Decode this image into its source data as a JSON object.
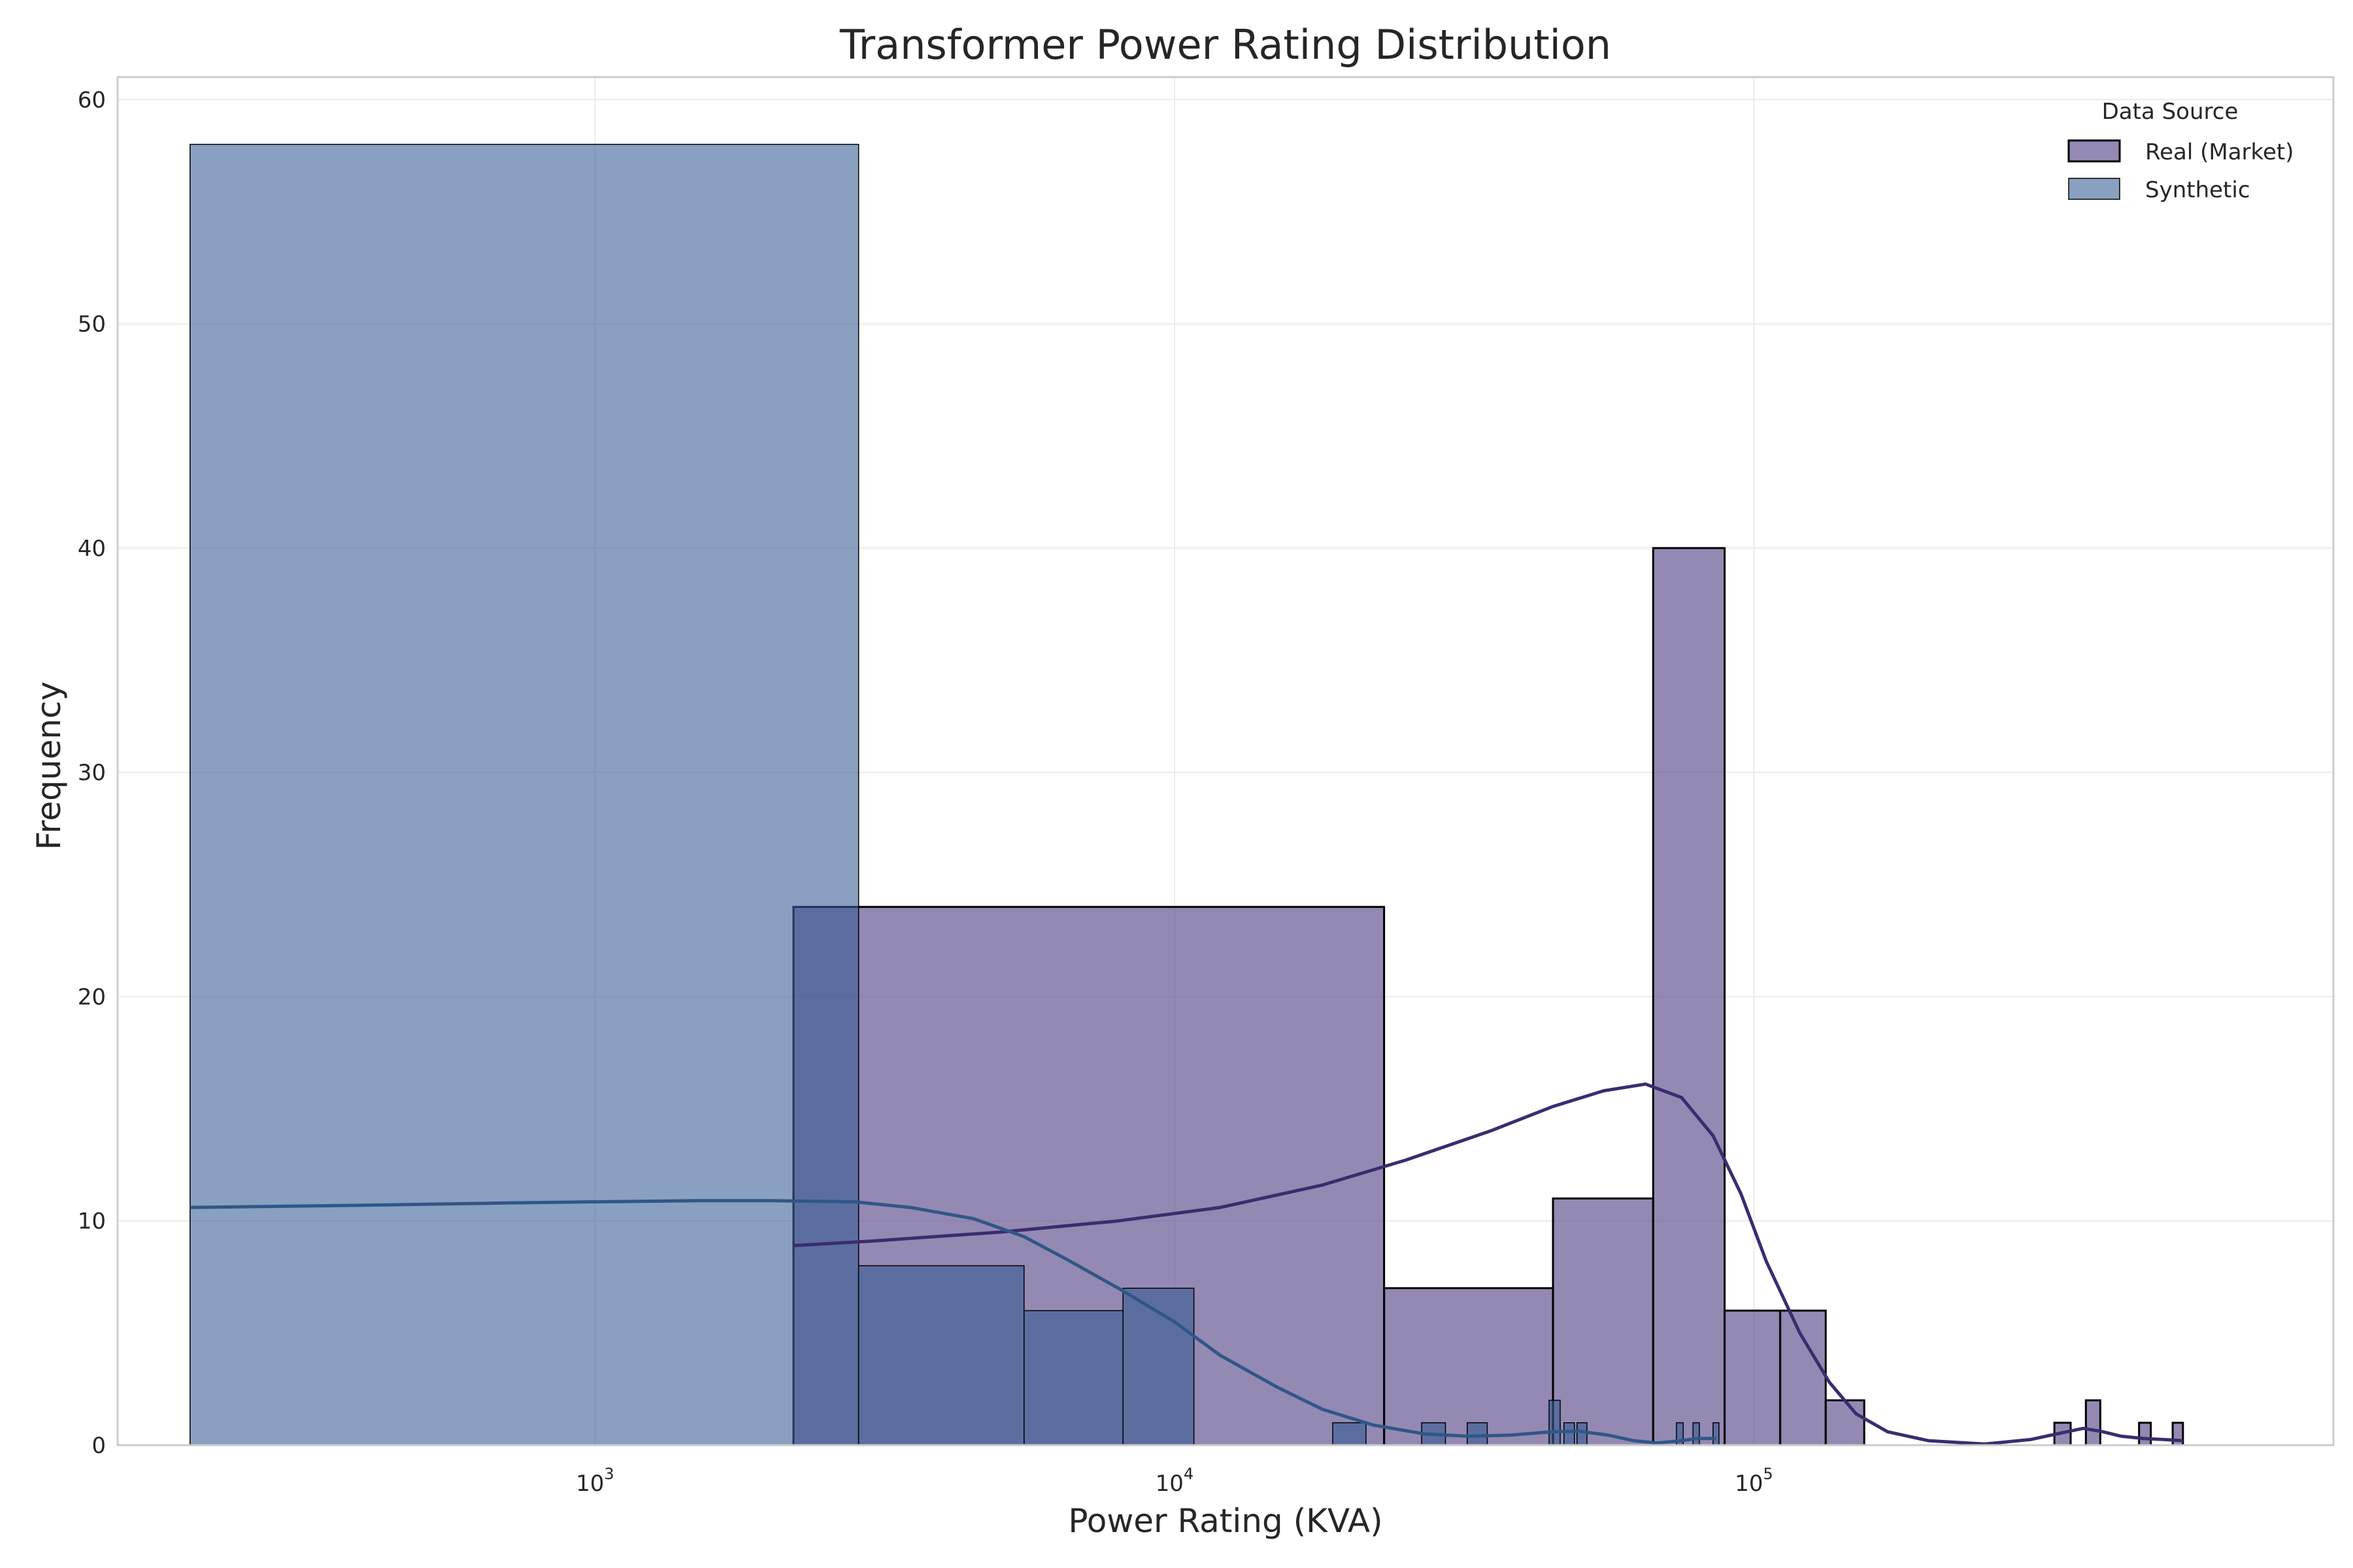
{
  "chart_data": {
    "type": "bar",
    "title": "Transformer Power Rating Distribution",
    "xlabel": "Power Rating (KVA)",
    "ylabel": "Frequency",
    "xscale": "log",
    "xlim": [
      150,
      1000000
    ],
    "ylim": [
      0,
      61
    ],
    "grid": true,
    "x_ticks": [
      {
        "value": 1000,
        "label_base": "10",
        "label_exp": "3"
      },
      {
        "value": 10000,
        "label_base": "10",
        "label_exp": "4"
      },
      {
        "value": 100000,
        "label_base": "10",
        "label_exp": "5"
      }
    ],
    "y_ticks": [
      0,
      10,
      20,
      30,
      40,
      50,
      60
    ],
    "legend": {
      "title": "Data Source",
      "position": "top-right",
      "entries": [
        "Real (Market)",
        "Synthetic"
      ]
    },
    "series": [
      {
        "name": "Real (Market)",
        "color": "#5b4a8a",
        "edge_color": "#000000",
        "kde_color": "#3b2c70",
        "bins": [
          {
            "x0": 2200,
            "x1": 23000,
            "count": 24
          },
          {
            "x0": 23000,
            "x1": 45000,
            "count": 7
          },
          {
            "x0": 45000,
            "x1": 67000,
            "count": 11
          },
          {
            "x0": 67000,
            "x1": 89000,
            "count": 40
          },
          {
            "x0": 89000,
            "x1": 111000,
            "count": 6
          },
          {
            "x0": 111000,
            "x1": 133000,
            "count": 6
          },
          {
            "x0": 133000,
            "x1": 155000,
            "count": 2
          },
          {
            "x0": 330000,
            "x1": 352000,
            "count": 1
          },
          {
            "x0": 374000,
            "x1": 396000,
            "count": 2
          },
          {
            "x0": 462000,
            "x1": 484000,
            "count": 1
          },
          {
            "x0": 528000,
            "x1": 550000,
            "count": 1
          }
        ],
        "kde": [
          [
            2200,
            8.9
          ],
          [
            3000,
            9.1
          ],
          [
            5000,
            9.5
          ],
          [
            8000,
            10.0
          ],
          [
            12000,
            10.6
          ],
          [
            18000,
            11.6
          ],
          [
            25000,
            12.7
          ],
          [
            35000,
            14.0
          ],
          [
            45000,
            15.1
          ],
          [
            55000,
            15.8
          ],
          [
            65000,
            16.1
          ],
          [
            75000,
            15.5
          ],
          [
            85000,
            13.8
          ],
          [
            95000,
            11.2
          ],
          [
            105000,
            8.2
          ],
          [
            120000,
            5.0
          ],
          [
            135000,
            2.8
          ],
          [
            150000,
            1.4
          ],
          [
            170000,
            0.6
          ],
          [
            200000,
            0.2
          ],
          [
            250000,
            0.05
          ],
          [
            300000,
            0.25
          ],
          [
            340000,
            0.55
          ],
          [
            370000,
            0.75
          ],
          [
            400000,
            0.6
          ],
          [
            430000,
            0.4
          ],
          [
            470000,
            0.3
          ],
          [
            510000,
            0.25
          ],
          [
            550000,
            0.2
          ]
        ]
      },
      {
        "name": "Synthetic",
        "color": "#345c92",
        "edge_color": "#000000",
        "kde_color": "#2f5788",
        "bins": [
          {
            "x0": 200,
            "x1": 2850,
            "count": 58
          },
          {
            "x0": 2850,
            "x1": 5500,
            "count": 8
          },
          {
            "x0": 5500,
            "x1": 8150,
            "count": 6
          },
          {
            "x0": 8150,
            "x1": 10800,
            "count": 7
          },
          {
            "x0": 18750,
            "x1": 21400,
            "count": 1
          },
          {
            "x0": 26700,
            "x1": 29350,
            "count": 1
          },
          {
            "x0": 32000,
            "x1": 34650,
            "count": 1
          },
          {
            "x0": 44300,
            "x1": 46300,
            "count": 2
          },
          {
            "x0": 47000,
            "x1": 49000,
            "count": 1
          },
          {
            "x0": 49500,
            "x1": 51500,
            "count": 1
          },
          {
            "x0": 73500,
            "x1": 75500,
            "count": 1
          },
          {
            "x0": 78500,
            "x1": 80500,
            "count": 1
          },
          {
            "x0": 85000,
            "x1": 87000,
            "count": 1
          }
        ],
        "kde": [
          [
            200,
            10.6
          ],
          [
            400,
            10.7
          ],
          [
            700,
            10.8
          ],
          [
            1000,
            10.85
          ],
          [
            1500,
            10.9
          ],
          [
            2000,
            10.9
          ],
          [
            2800,
            10.85
          ],
          [
            3500,
            10.6
          ],
          [
            4500,
            10.1
          ],
          [
            5500,
            9.3
          ],
          [
            6500,
            8.3
          ],
          [
            8000,
            7.0
          ],
          [
            10000,
            5.5
          ],
          [
            12000,
            4.0
          ],
          [
            15000,
            2.6
          ],
          [
            18000,
            1.6
          ],
          [
            22000,
            0.9
          ],
          [
            27000,
            0.5
          ],
          [
            32000,
            0.4
          ],
          [
            38000,
            0.45
          ],
          [
            45000,
            0.6
          ],
          [
            50000,
            0.62
          ],
          [
            56000,
            0.45
          ],
          [
            62000,
            0.2
          ],
          [
            68000,
            0.1
          ],
          [
            75000,
            0.2
          ],
          [
            80000,
            0.3
          ],
          [
            86000,
            0.3
          ]
        ]
      }
    ]
  }
}
